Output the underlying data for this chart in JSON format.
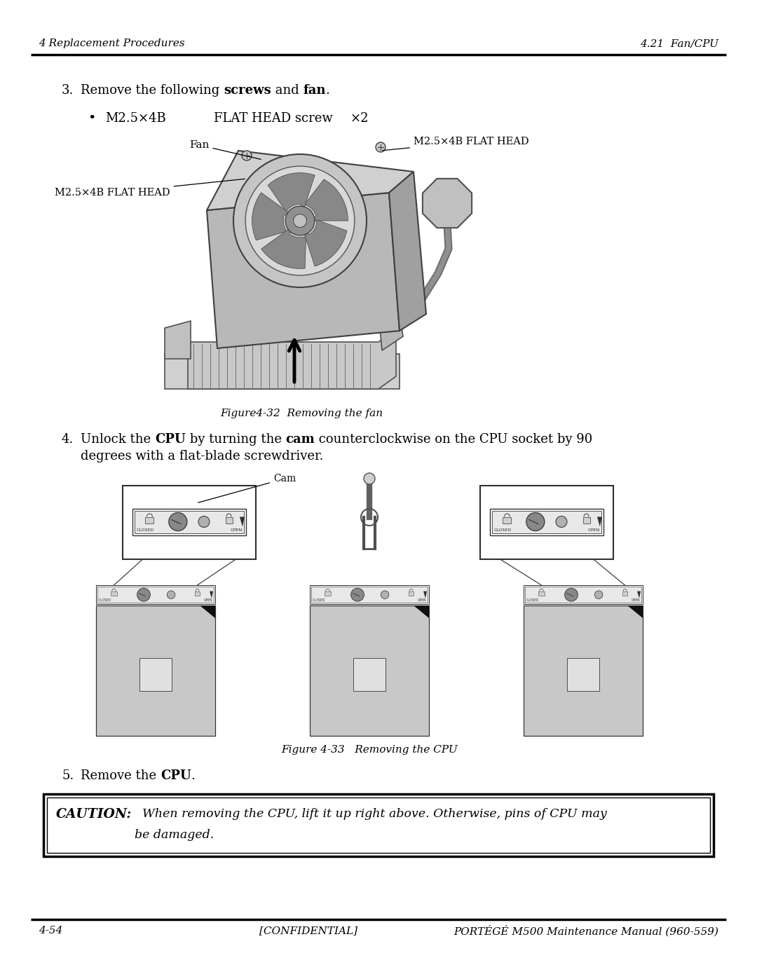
{
  "page_background": "#ffffff",
  "header_left": "4 Replacement Procedures",
  "header_right": "4.21  Fan/CPU",
  "footer_left": "4-54",
  "footer_center": "[CONFIDENTIAL]",
  "footer_right": "PORTÉGÉ M500 Maintenance Manual (960-559)",
  "step3_text": "Remove the following ",
  "step3_bold1": "screws",
  "step3_and": " and ",
  "step3_bold2": "fan",
  "step3_end": ".",
  "bullet_label": "M2.5×4B",
  "bullet_desc": "    FLAT HEAD screw",
  "bullet_count": "×2",
  "fig1_caption": "Figure4-32  Removing the fan",
  "label_fan": "Fan",
  "label_m25_right": "M2.5×4B FLAT HEAD",
  "label_m25_left": "M2.5×4B FLAT HEAD",
  "step4_normal1": "Unlock the ",
  "step4_bold1": "CPU",
  "step4_normal2": " by turning the ",
  "step4_bold2": "cam",
  "step4_normal3": " counterclockwise on the CPU socket by 90",
  "step4_line2": "degrees with a flat-blade screwdriver.",
  "fig2_caption": "Figure 4-33   Removing the CPU",
  "label_cam": "Cam",
  "step5_normal": "Remove the ",
  "step5_bold": "CPU",
  "step5_end": ".",
  "caution_bold": "CAUTION:",
  "caution_line1": "  When removing the CPU, lift it up right above. Otherwise, pins of CPU may",
  "caution_line2": "be damaged."
}
